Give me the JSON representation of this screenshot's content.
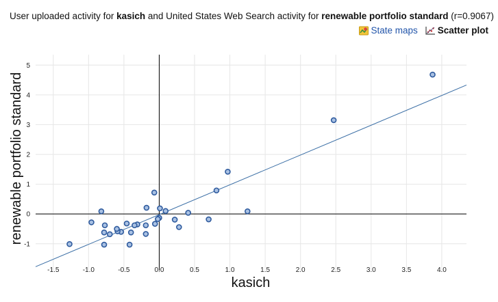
{
  "header": {
    "prefix": "User uploaded activity for ",
    "term1": "kasich",
    "middle": " and United States Web Search activity for ",
    "term2": "renewable portfolio standard",
    "suffix": " (r=0.9067)"
  },
  "toolbar": {
    "state_maps_label": "State maps",
    "scatter_plot_label": "Scatter plot"
  },
  "colors": {
    "point_fill": "#a9c1e3",
    "point_stroke": "#2f5b9e",
    "regression": "#3a6ea5",
    "grid": "#e6e6e6",
    "axis_zero": "#000000"
  },
  "chart_data": {
    "type": "scatter",
    "xlabel": "kasich",
    "ylabel": "renewable portfolio standard",
    "xlim": [
      -1.75,
      4.35
    ],
    "ylim": [
      -1.9,
      5.35
    ],
    "xticks": [
      -1.5,
      -1.0,
      -0.5,
      0.0,
      0.5,
      1.0,
      1.5,
      2.0,
      2.5,
      3.0,
      3.5,
      4.0
    ],
    "xtick_labels": [
      "-1.5",
      "-1.0",
      "-0.5",
      "0.0",
      "0.5",
      "1.0",
      "1.5",
      "2.0",
      "2.5",
      "3.0",
      "3.5",
      "4.0"
    ],
    "yticks": [
      -1,
      0,
      1,
      2,
      3,
      4,
      5
    ],
    "ytick_labels": [
      "-1",
      "0",
      "1",
      "2",
      "3",
      "4",
      "5"
    ],
    "grid": true,
    "regression_line": {
      "slope": 1.0,
      "intercept": -0.02
    },
    "points": [
      {
        "x": 3.87,
        "y": 4.68
      },
      {
        "x": 2.47,
        "y": 3.15
      },
      {
        "x": 0.97,
        "y": 1.42
      },
      {
        "x": 0.81,
        "y": 0.79
      },
      {
        "x": 1.25,
        "y": 0.09
      },
      {
        "x": 0.41,
        "y": 0.04
      },
      {
        "x": 0.7,
        "y": -0.18
      },
      {
        "x": 0.22,
        "y": -0.19
      },
      {
        "x": 0.28,
        "y": -0.44
      },
      {
        "x": 0.09,
        "y": 0.1
      },
      {
        "x": 0.01,
        "y": 0.19
      },
      {
        "x": 0.0,
        "y": -0.13
      },
      {
        "x": -0.02,
        "y": -0.17
      },
      {
        "x": -0.06,
        "y": -0.33
      },
      {
        "x": -0.07,
        "y": 0.72
      },
      {
        "x": -0.18,
        "y": 0.21
      },
      {
        "x": -0.19,
        "y": -0.38
      },
      {
        "x": -0.19,
        "y": -0.67
      },
      {
        "x": -0.31,
        "y": -0.35
      },
      {
        "x": -0.35,
        "y": -0.38
      },
      {
        "x": -0.4,
        "y": -0.62
      },
      {
        "x": -0.42,
        "y": -1.03
      },
      {
        "x": -0.46,
        "y": -0.32
      },
      {
        "x": -0.54,
        "y": -0.6
      },
      {
        "x": -0.59,
        "y": -0.58
      },
      {
        "x": -0.6,
        "y": -0.5
      },
      {
        "x": -0.7,
        "y": -0.68
      },
      {
        "x": -0.77,
        "y": -0.38
      },
      {
        "x": -0.78,
        "y": -0.62
      },
      {
        "x": -0.78,
        "y": -1.03
      },
      {
        "x": -0.82,
        "y": 0.09
      },
      {
        "x": -0.96,
        "y": -0.28
      },
      {
        "x": -1.27,
        "y": -1.01
      }
    ]
  }
}
